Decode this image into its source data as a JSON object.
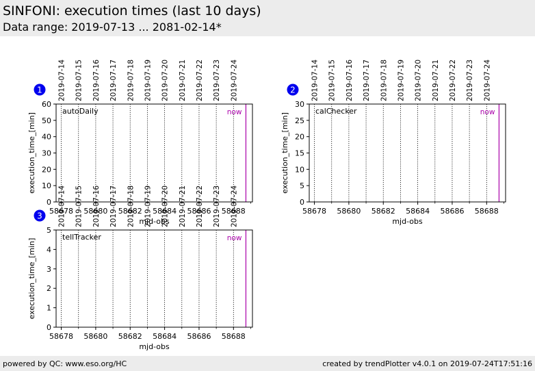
{
  "header": {
    "title": "SINFONI: execution times (last 10 days)",
    "subtitle": "Data range: 2019-07-13 ... 2081-02-14*"
  },
  "footer": {
    "left": "powered by QC: www.eso.org/HC",
    "right": "created by trendPlotter v4.0.1 on 2019-07-24T17:51:16"
  },
  "colors": {
    "badge": "#0000ee",
    "now_line": "#aa00aa",
    "date_line": "#000000",
    "header_bg": "#ececec"
  },
  "chart_data": [
    {
      "type": "scatter",
      "badge": "1",
      "panel_label": "autoDaily",
      "now_label": "now",
      "now_x": 58688.72,
      "xlabel": "mjd-obs",
      "ylabel": "execution_time_[min]",
      "xlim": [
        58677.7,
        58689.1
      ],
      "ylim": [
        0,
        60
      ],
      "xticks": [
        58678,
        58680,
        58682,
        58684,
        58686,
        58688
      ],
      "yticks": [
        0,
        10,
        20,
        30,
        40,
        50,
        60
      ],
      "date_labels": [
        "2019-07-14",
        "2019-07-15",
        "2019-07-16",
        "2019-07-17",
        "2019-07-18",
        "2019-07-19",
        "2019-07-20",
        "2019-07-21",
        "2019-07-22",
        "2019-07-23",
        "2019-07-24"
      ],
      "date_positions": [
        58678.0,
        58679.0,
        58680.0,
        58681.0,
        58682.0,
        58683.0,
        58684.0,
        58685.0,
        58686.0,
        58687.0,
        58688.0
      ],
      "points": []
    },
    {
      "type": "scatter",
      "badge": "2",
      "panel_label": "calChecker",
      "now_label": "now",
      "now_x": 58688.72,
      "xlabel": "mjd-obs",
      "ylabel": "execution_time_[min]",
      "xlim": [
        58677.7,
        58689.1
      ],
      "ylim": [
        0,
        30
      ],
      "xticks": [
        58678,
        58680,
        58682,
        58684,
        58686,
        58688
      ],
      "yticks": [
        0,
        5,
        10,
        15,
        20,
        25,
        30
      ],
      "date_labels": [
        "2019-07-14",
        "2019-07-15",
        "2019-07-16",
        "2019-07-17",
        "2019-07-18",
        "2019-07-19",
        "2019-07-20",
        "2019-07-21",
        "2019-07-22",
        "2019-07-23",
        "2019-07-24"
      ],
      "date_positions": [
        58678.0,
        58679.0,
        58680.0,
        58681.0,
        58682.0,
        58683.0,
        58684.0,
        58685.0,
        58686.0,
        58687.0,
        58688.0
      ],
      "points": []
    },
    {
      "type": "scatter",
      "badge": "3",
      "panel_label": "tellTracker",
      "now_label": "now",
      "now_x": 58688.72,
      "xlabel": "mjd-obs",
      "ylabel": "execution_time_[min]",
      "xlim": [
        58677.7,
        58689.1
      ],
      "ylim": [
        0,
        5
      ],
      "xticks": [
        58678,
        58680,
        58682,
        58684,
        58686,
        58688
      ],
      "yticks": [
        0,
        1,
        2,
        3,
        4,
        5
      ],
      "date_labels": [
        "2019-07-14",
        "2019-07-15",
        "2019-07-16",
        "2019-07-17",
        "2019-07-18",
        "2019-07-19",
        "2019-07-20",
        "2019-07-21",
        "2019-07-22",
        "2019-07-23",
        "2019-07-24"
      ],
      "date_positions": [
        58678.0,
        58679.0,
        58680.0,
        58681.0,
        58682.0,
        58683.0,
        58684.0,
        58685.0,
        58686.0,
        58687.0,
        58688.0
      ],
      "points": []
    }
  ]
}
